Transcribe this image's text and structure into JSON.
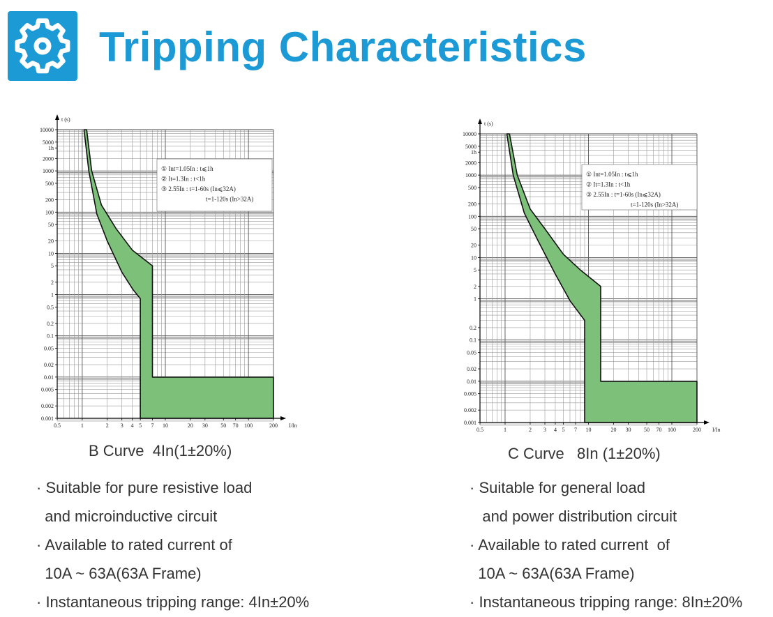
{
  "page": {
    "title": "Tripping Characteristics",
    "icon": "gear-icon",
    "accent_color": "#1b9ad6"
  },
  "chart_data": [
    {
      "type": "area",
      "caption": "B Curve  4In(1±20%)",
      "xlabel": "I/In",
      "ylabel": "t (s)",
      "x_scale": "log",
      "y_scale": "log",
      "xlim": [
        0.5,
        200
      ],
      "ylim": [
        0.001,
        10000
      ],
      "x_ticks": [
        {
          "v": 0.5,
          "label": "0.5"
        },
        {
          "v": 1,
          "label": "1"
        },
        {
          "v": 2,
          "label": "2"
        },
        {
          "v": 3,
          "label": "3"
        },
        {
          "v": 4,
          "label": "4"
        },
        {
          "v": 5,
          "label": "5"
        },
        {
          "v": 7,
          "label": "7"
        },
        {
          "v": 10,
          "label": "10"
        },
        {
          "v": 20,
          "label": "20"
        },
        {
          "v": 30,
          "label": "30"
        },
        {
          "v": 50,
          "label": "50"
        },
        {
          "v": 70,
          "label": "70"
        },
        {
          "v": 100,
          "label": "100"
        },
        {
          "v": 200,
          "label": "200"
        }
      ],
      "y_ticks": [
        {
          "v": 10000,
          "label": "10000"
        },
        {
          "v": 5000,
          "label": "5000"
        },
        {
          "v": 3600,
          "label": "1h"
        },
        {
          "v": 2000,
          "label": "2000"
        },
        {
          "v": 1000,
          "label": "1000"
        },
        {
          "v": 500,
          "label": "500"
        },
        {
          "v": 200,
          "label": "200"
        },
        {
          "v": 100,
          "label": "100"
        },
        {
          "v": 50,
          "label": "50"
        },
        {
          "v": 20,
          "label": "20"
        },
        {
          "v": 10,
          "label": "10"
        },
        {
          "v": 5,
          "label": "5"
        },
        {
          "v": 2,
          "label": "2"
        },
        {
          "v": 1,
          "label": "1"
        },
        {
          "v": 0.5,
          "label": "0.5"
        },
        {
          "v": 0.2,
          "label": "0.2"
        },
        {
          "v": 0.1,
          "label": "0.1"
        },
        {
          "v": 0.05,
          "label": "0.05"
        },
        {
          "v": 0.02,
          "label": "0.02"
        },
        {
          "v": 0.01,
          "label": "0.01"
        },
        {
          "v": 0.005,
          "label": "0.005"
        },
        {
          "v": 0.002,
          "label": "0.002"
        },
        {
          "v": 0.001,
          "label": "0.001"
        }
      ],
      "annotations": [
        "① Int=1.05In : t⩽1h",
        "② It=1.3In : t<1h",
        "③ 2.55In : t=1-60s (In⩽32A)",
        "t=1-120s (In>32A)"
      ],
      "band": {
        "upper": [
          [
            1.13,
            10000
          ],
          [
            1.3,
            1000
          ],
          [
            1.7,
            150
          ],
          [
            2.55,
            40
          ],
          [
            4,
            12
          ],
          [
            7,
            5
          ],
          [
            7,
            0.01
          ],
          [
            200,
            0.01
          ]
        ],
        "lower": [
          [
            1.05,
            10000
          ],
          [
            1.2,
            1000
          ],
          [
            1.5,
            90
          ],
          [
            2,
            20
          ],
          [
            3,
            3.5
          ],
          [
            4.1,
            1.3
          ],
          [
            5,
            0.8
          ],
          [
            5,
            0.001
          ],
          [
            200,
            0.001
          ]
        ]
      },
      "fill_color": "#7dc07a"
    },
    {
      "type": "area",
      "caption": "C Curve   8In (1±20%)",
      "xlabel": "I/In",
      "ylabel": "t (s)",
      "x_scale": "log",
      "y_scale": "log",
      "xlim": [
        0.5,
        200
      ],
      "ylim": [
        0.001,
        10000
      ],
      "x_ticks": [
        {
          "v": 0.5,
          "label": "0.5"
        },
        {
          "v": 1,
          "label": "1"
        },
        {
          "v": 2,
          "label": "2"
        },
        {
          "v": 3,
          "label": "3"
        },
        {
          "v": 4,
          "label": "4"
        },
        {
          "v": 5,
          "label": "5"
        },
        {
          "v": 7,
          "label": "7"
        },
        {
          "v": 10,
          "label": "10"
        },
        {
          "v": 20,
          "label": "20"
        },
        {
          "v": 30,
          "label": "30"
        },
        {
          "v": 50,
          "label": "50"
        },
        {
          "v": 70,
          "label": "70"
        },
        {
          "v": 100,
          "label": "100"
        },
        {
          "v": 200,
          "label": "200"
        }
      ],
      "y_ticks": [
        {
          "v": 10000,
          "label": "10000"
        },
        {
          "v": 5000,
          "label": "5000"
        },
        {
          "v": 3600,
          "label": "1h"
        },
        {
          "v": 2000,
          "label": "2000"
        },
        {
          "v": 1000,
          "label": "1000"
        },
        {
          "v": 500,
          "label": "500"
        },
        {
          "v": 200,
          "label": "200"
        },
        {
          "v": 100,
          "label": "100"
        },
        {
          "v": 50,
          "label": "50"
        },
        {
          "v": 20,
          "label": "20"
        },
        {
          "v": 10,
          "label": "10"
        },
        {
          "v": 5,
          "label": "5"
        },
        {
          "v": 2,
          "label": "2"
        },
        {
          "v": 1,
          "label": "1"
        },
        {
          "v": 0.2,
          "label": "0.2"
        },
        {
          "v": 0.1,
          "label": "0.1"
        },
        {
          "v": 0.05,
          "label": "0.05"
        },
        {
          "v": 0.02,
          "label": "0.02"
        },
        {
          "v": 0.01,
          "label": "0.01"
        },
        {
          "v": 0.005,
          "label": "0.005"
        },
        {
          "v": 0.002,
          "label": "0.002"
        },
        {
          "v": 0.001,
          "label": "0.001"
        }
      ],
      "annotations": [
        "① Int=1.05In : t⩽1h",
        "② It=1.3In : t<1h",
        "③ 2.55In : t=1-60s (In⩽32A)",
        "t=1-120s (In>32A)"
      ],
      "band": {
        "upper": [
          [
            1.13,
            10000
          ],
          [
            1.4,
            1000
          ],
          [
            2,
            150
          ],
          [
            3,
            50
          ],
          [
            5,
            12
          ],
          [
            8,
            5
          ],
          [
            14,
            2
          ],
          [
            14,
            0.01
          ],
          [
            200,
            0.01
          ]
        ],
        "lower": [
          [
            1.05,
            10000
          ],
          [
            1.25,
            1000
          ],
          [
            1.7,
            120
          ],
          [
            2.5,
            25
          ],
          [
            4,
            4
          ],
          [
            6,
            0.9
          ],
          [
            9,
            0.3
          ],
          [
            9,
            0.001
          ],
          [
            200,
            0.001
          ]
        ]
      },
      "fill_color": "#7dc07a"
    }
  ],
  "left_panel": {
    "bullets": [
      "· Suitable for pure resistive load",
      "  and microinductive circuit",
      "· Available to rated current of",
      "  10A ~ 63A(63A Frame)",
      "· Instantaneous tripping range: 4In±20%"
    ]
  },
  "right_panel": {
    "bullets": [
      "· Suitable for general load",
      "   and power distribution circuit",
      "· Available to rated current  of",
      "  10A ~ 63A(63A Frame)",
      "· Instantaneous tripping range: 8In±20%"
    ]
  }
}
